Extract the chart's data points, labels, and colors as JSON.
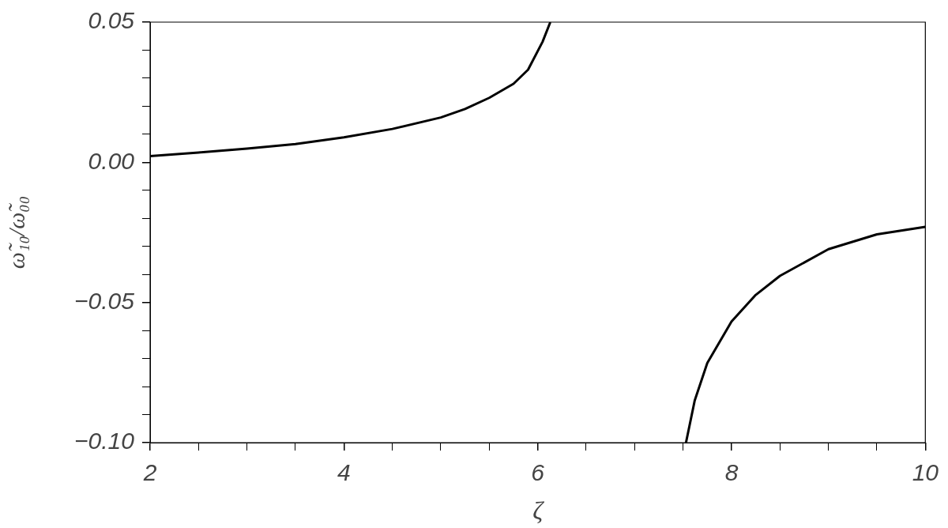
{
  "chart_data": {
    "type": "line",
    "xlabel": "ζ",
    "ylabel": "ω̃₁₀/ω̃₀₀",
    "series": [
      {
        "color": "#000000",
        "x": [
          2,
          2.5,
          3,
          3.5,
          4,
          4.5,
          5,
          5.25,
          5.5,
          5.75,
          5.9,
          6.05,
          6.13
        ],
        "values": [
          0.0022,
          0.0035,
          0.0049,
          0.0065,
          0.0089,
          0.0119,
          0.016,
          0.019,
          0.023,
          0.028,
          0.033,
          0.043,
          0.05
        ]
      },
      {
        "color": "#000000",
        "x": [
          7.53,
          7.62,
          7.75,
          8,
          8.25,
          8.5,
          9,
          9.5,
          10
        ],
        "values": [
          -0.1,
          -0.085,
          -0.0716,
          -0.0568,
          -0.0473,
          -0.0405,
          -0.031,
          -0.0257,
          -0.023
        ]
      }
    ],
    "xlim": [
      2,
      10
    ],
    "xticks": [
      2,
      {
        "value": 2.5,
        "label": null
      },
      {
        "value": 3,
        "label": null
      },
      {
        "value": 3.5,
        "label": null
      },
      4,
      {
        "value": 4.5,
        "label": null
      },
      {
        "value": 5,
        "label": null
      },
      {
        "value": 5.5,
        "label": null
      },
      6,
      {
        "value": 6.5,
        "label": null
      },
      {
        "value": 7,
        "label": null
      },
      {
        "value": 7.5,
        "label": null
      },
      8,
      {
        "value": 8.5,
        "label": null
      },
      {
        "value": 9,
        "label": null
      },
      {
        "value": 9.5,
        "label": null
      },
      10
    ],
    "ylim": [
      -0.1,
      0.05
    ],
    "yticks": [
      {
        "value": -0.1,
        "label": "−0.10"
      },
      {
        "value": -0.09,
        "label": null
      },
      {
        "value": -0.08,
        "label": null
      },
      {
        "value": -0.07,
        "label": null
      },
      {
        "value": -0.06,
        "label": null
      },
      {
        "value": -0.05,
        "label": "−0.05"
      },
      {
        "value": -0.04,
        "label": null
      },
      {
        "value": -0.03,
        "label": null
      },
      {
        "value": -0.02,
        "label": null
      },
      {
        "value": -0.01,
        "label": null
      },
      {
        "value": 0,
        "label": "0.00"
      },
      {
        "value": 0.01,
        "label": null
      },
      {
        "value": 0.02,
        "label": null
      },
      {
        "value": 0.03,
        "label": null
      },
      {
        "value": 0.04,
        "label": null
      },
      {
        "value": 0.05,
        "label": "0.05"
      }
    ],
    "grid": false,
    "legend": false,
    "marker": "none",
    "line_style": "solid"
  }
}
